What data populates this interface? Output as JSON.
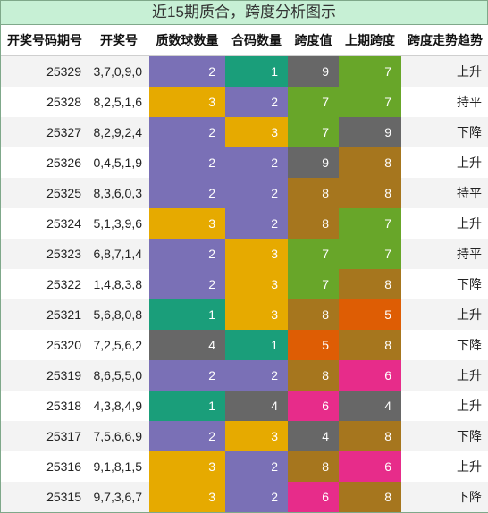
{
  "title": "近15期质合，跨度分析图示",
  "headers": [
    "开奖号码期号",
    "开奖号",
    "质数球数量",
    "合码数量",
    "跨度值",
    "上期跨度",
    "跨度走势趋势"
  ],
  "colors": {
    "1": "#1a9e7a",
    "2": "#7a70b6",
    "3": "#e6aa00",
    "4": "#676767",
    "5": "#de5d04",
    "6": "#e72c8a",
    "7": "#68a629",
    "8": "#a6761e",
    "9": "#676767"
  },
  "rows": [
    {
      "period": "25329",
      "numbers": "3,7,0,9,0",
      "prime": "2",
      "composite": "1",
      "span": "9",
      "prev_span": "7",
      "trend": "上升"
    },
    {
      "period": "25328",
      "numbers": "8,2,5,1,6",
      "prime": "3",
      "composite": "2",
      "span": "7",
      "prev_span": "7",
      "trend": "持平"
    },
    {
      "period": "25327",
      "numbers": "8,2,9,2,4",
      "prime": "2",
      "composite": "3",
      "span": "7",
      "prev_span": "9",
      "trend": "下降"
    },
    {
      "period": "25326",
      "numbers": "0,4,5,1,9",
      "prime": "2",
      "composite": "2",
      "span": "9",
      "prev_span": "8",
      "trend": "上升"
    },
    {
      "period": "25325",
      "numbers": "8,3,6,0,3",
      "prime": "2",
      "composite": "2",
      "span": "8",
      "prev_span": "8",
      "trend": "持平"
    },
    {
      "period": "25324",
      "numbers": "5,1,3,9,6",
      "prime": "3",
      "composite": "2",
      "span": "8",
      "prev_span": "7",
      "trend": "上升"
    },
    {
      "period": "25323",
      "numbers": "6,8,7,1,4",
      "prime": "2",
      "composite": "3",
      "span": "7",
      "prev_span": "7",
      "trend": "持平"
    },
    {
      "period": "25322",
      "numbers": "1,4,8,3,8",
      "prime": "2",
      "composite": "3",
      "span": "7",
      "prev_span": "8",
      "trend": "下降"
    },
    {
      "period": "25321",
      "numbers": "5,6,8,0,8",
      "prime": "1",
      "composite": "3",
      "span": "8",
      "prev_span": "5",
      "trend": "上升"
    },
    {
      "period": "25320",
      "numbers": "7,2,5,6,2",
      "prime": "4",
      "composite": "1",
      "span": "5",
      "prev_span": "8",
      "trend": "下降"
    },
    {
      "period": "25319",
      "numbers": "8,6,5,5,0",
      "prime": "2",
      "composite": "2",
      "span": "8",
      "prev_span": "6",
      "trend": "上升"
    },
    {
      "period": "25318",
      "numbers": "4,3,8,4,9",
      "prime": "1",
      "composite": "4",
      "span": "6",
      "prev_span": "4",
      "trend": "上升"
    },
    {
      "period": "25317",
      "numbers": "7,5,6,6,9",
      "prime": "2",
      "composite": "3",
      "span": "4",
      "prev_span": "8",
      "trend": "下降"
    },
    {
      "period": "25316",
      "numbers": "9,1,8,1,5",
      "prime": "3",
      "composite": "2",
      "span": "8",
      "prev_span": "6",
      "trend": "上升"
    },
    {
      "period": "25315",
      "numbers": "9,7,3,6,7",
      "prime": "3",
      "composite": "2",
      "span": "6",
      "prev_span": "8",
      "trend": "下降"
    }
  ]
}
